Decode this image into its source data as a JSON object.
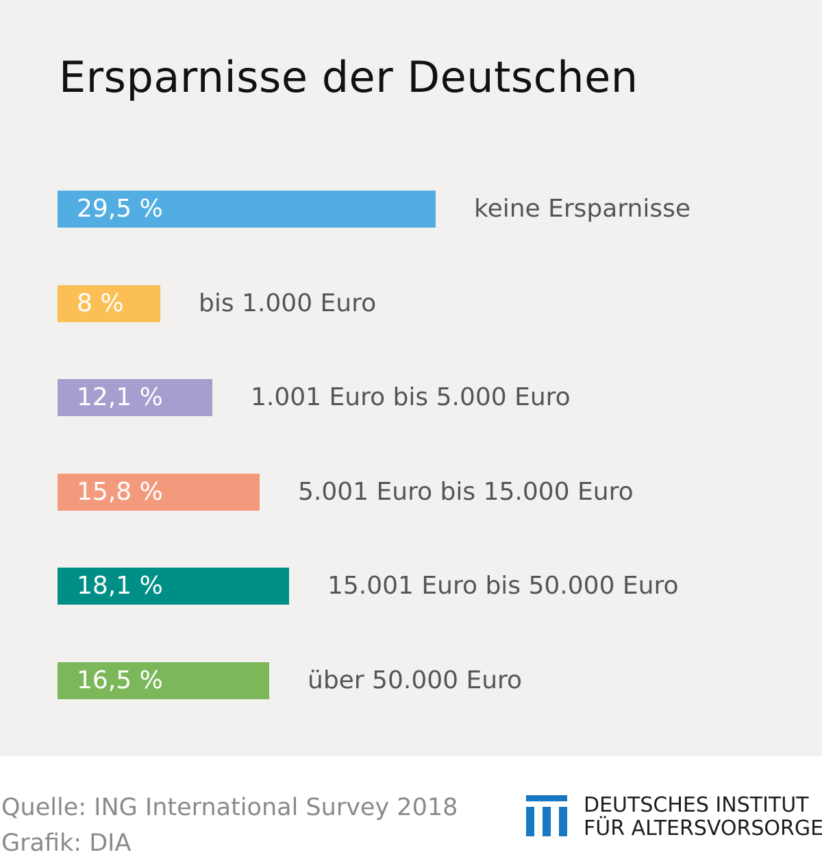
{
  "chart_data": {
    "type": "bar",
    "orientation": "horizontal",
    "title": "Ersparnisse der Deutschen",
    "categories": [
      "keine Ersparnisse",
      "bis 1.000 Euro",
      "1.001 Euro bis 5.000 Euro",
      "5.001 Euro bis 15.000 Euro",
      "15.001 Euro bis 50.000 Euro",
      "über 50.000 Euro"
    ],
    "values": [
      29.5,
      8,
      12.1,
      15.8,
      18.1,
      16.5
    ],
    "value_labels": [
      "29,5 %",
      "8 %",
      "12,1 %",
      "15,8 %",
      "18,1 %",
      "16,5 %"
    ],
    "colors": [
      "#52ade2",
      "#fcbf56",
      "#a79dce",
      "#f49a7c",
      "#008f86",
      "#7cb85a"
    ],
    "unit": "%"
  },
  "footer": {
    "source": "Quelle: ING International Survey 2018",
    "credit": "Grafik: DIA"
  },
  "logo": {
    "icon": "dia-columns-icon",
    "color": "#1878c2",
    "line1": "DEUTSCHES INSTITUT",
    "line2": "FÜR ALTERSVORSORGE"
  }
}
